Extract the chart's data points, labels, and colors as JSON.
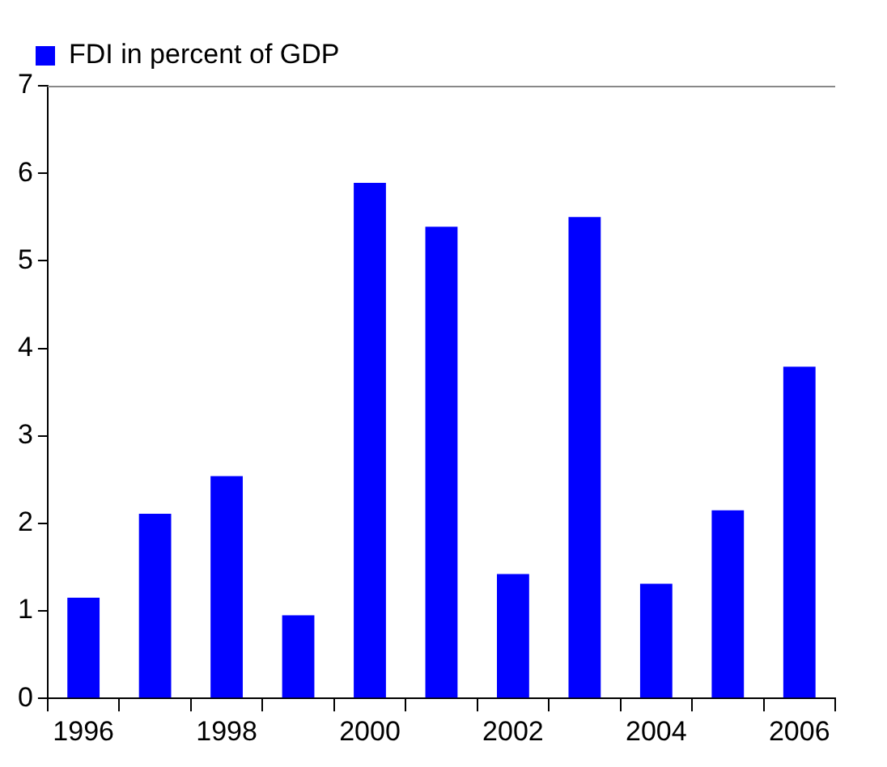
{
  "chart_data": {
    "type": "bar",
    "categories": [
      "1996",
      null,
      "1998",
      null,
      "2000",
      null,
      "2002",
      null,
      "2004",
      null,
      "2006"
    ],
    "series": [
      {
        "name": "FDI in percent of GDP",
        "color": "#0000ff",
        "values": [
          1.15,
          2.11,
          2.54,
          0.95,
          5.89,
          5.39,
          1.42,
          5.5,
          1.31,
          2.15,
          3.79
        ]
      }
    ],
    "ylim": [
      0,
      7
    ],
    "yticks": [
      0,
      1,
      2,
      3,
      4,
      5,
      6,
      7
    ],
    "grid": false,
    "legend": "top left"
  }
}
